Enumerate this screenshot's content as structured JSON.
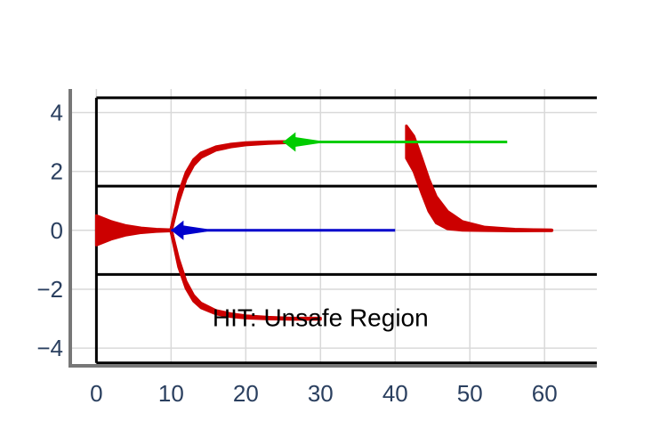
{
  "chart_data": {
    "type": "line",
    "title": "",
    "xlabel": "",
    "ylabel": "",
    "xlim": [
      -3.5,
      67
    ],
    "ylim": [
      -4.6,
      4.8
    ],
    "grid": true,
    "x_ticks": [
      0,
      10,
      20,
      30,
      40,
      50,
      60
    ],
    "y_ticks": [
      4,
      2,
      0,
      -2,
      -4
    ],
    "y_tick_labels": [
      "4",
      "2",
      "0",
      "−2",
      "−4"
    ],
    "boundaries": {
      "outer_box": {
        "x_start": 0,
        "y_top": 4.5,
        "y_bottom": -4.5
      },
      "safe_band": [
        1.5,
        -1.5
      ]
    },
    "series": [
      {
        "color": "#cc0000",
        "segments": [
          {
            "x": [
              0,
              2,
              4,
              6,
              8,
              10
            ],
            "y": [
              0,
              0,
              0,
              0,
              0,
              0
            ],
            "spread": [
              0.5,
              0.3,
              0.16,
              0.08,
              0.04,
              0.02
            ]
          },
          {
            "x": [
              10,
              11,
              12,
              13,
              14,
              16,
              18,
              20,
              23,
              26,
              28
            ],
            "y": [
              0,
              1.1,
              1.85,
              2.3,
              2.55,
              2.78,
              2.88,
              2.94,
              2.98,
              3,
              3
            ],
            "spread": [
              0.06,
              0.14,
              0.12,
              0.1,
              0.08,
              0.06,
              0.05,
              0.04,
              0.03,
              0.02,
              0.02
            ]
          },
          {
            "x": [
              10,
              11,
              12,
              13,
              14,
              16,
              18,
              20,
              23,
              26,
              30
            ],
            "y": [
              0,
              -1.1,
              -1.85,
              -2.3,
              -2.55,
              -2.78,
              -2.88,
              -2.94,
              -2.98,
              -3,
              -3
            ],
            "spread": [
              0.06,
              0.14,
              0.12,
              0.1,
              0.08,
              0.06,
              0.05,
              0.04,
              0.03,
              0.02,
              0.02
            ]
          },
          {
            "x": [
              41.5,
              42.5,
              43.5,
              44.5,
              45.5,
              47,
              49,
              52,
              56,
              61
            ],
            "y": [
              3,
              2.6,
              1.9,
              1.2,
              0.7,
              0.35,
              0.15,
              0.05,
              0.01,
              0
            ],
            "spread": [
              0.55,
              0.6,
              0.6,
              0.55,
              0.45,
              0.3,
              0.15,
              0.06,
              0.03,
              0.01
            ]
          }
        ]
      },
      {
        "color": "#0000cc",
        "segments": [
          {
            "x": [
              10,
              40
            ],
            "y": [
              0,
              0
            ],
            "arrow_at": 10
          }
        ]
      },
      {
        "color": "#00cc00",
        "segments": [
          {
            "x": [
              25,
              55
            ],
            "y": [
              3,
              3
            ],
            "arrow_at": 25
          }
        ]
      }
    ],
    "annotations": [
      {
        "text": "HIT: Unsafe Region",
        "x": 30,
        "y": -2.95
      }
    ]
  }
}
